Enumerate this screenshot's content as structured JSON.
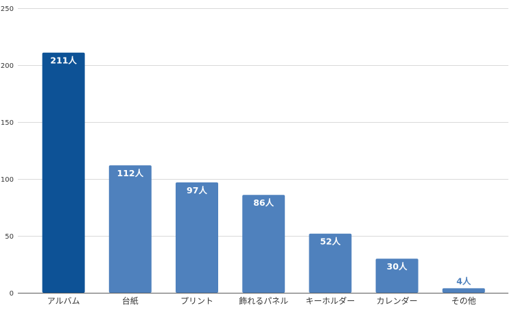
{
  "chart_data": {
    "type": "bar",
    "categories": [
      "アルバム",
      "台紙",
      "プリント",
      "飾れるパネル",
      "キーホルダー",
      "カレンダー",
      "その他"
    ],
    "values": [
      211,
      112,
      97,
      86,
      52,
      30,
      4
    ],
    "value_labels": [
      "211人",
      "112人",
      "97人",
      "86人",
      "52人",
      "30人",
      "4人"
    ],
    "ylim": [
      0,
      250
    ],
    "yticks": [
      0,
      50,
      100,
      150,
      200,
      250
    ],
    "ytick_labels": [
      "0",
      "50",
      "100",
      "150",
      "200",
      "250"
    ],
    "grid": true,
    "colors": {
      "highlight": "#0d5296",
      "default": "#4f81bd",
      "label_inside": "#ffffff",
      "label_outside": "#4f81bd",
      "grid": "#d9d9d9",
      "axis": "#595959"
    }
  }
}
